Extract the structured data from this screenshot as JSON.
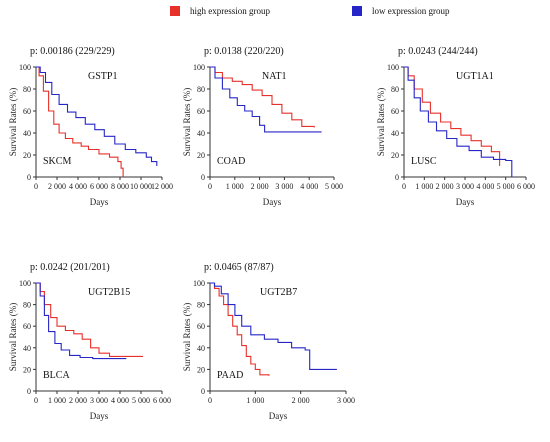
{
  "legend": {
    "items": [
      {
        "label": "high expression group",
        "color": "#e8302a"
      },
      {
        "label": "low expression group",
        "color": "#2626c8"
      }
    ]
  },
  "chart_data": [
    {
      "type": "line",
      "pvalue_text": "p: 0.00186 (229/229)",
      "gene": "GSTP1",
      "cancer": "SKCM",
      "xlabel": "Days",
      "ylabel": "Survival Rates (%)",
      "xlim": [
        0,
        12000
      ],
      "ylim": [
        0,
        100
      ],
      "xticks": [
        0,
        2000,
        4000,
        6000,
        8000,
        10000,
        12000
      ],
      "xtick_labels": [
        "0",
        "2 000",
        "4 000",
        "6 000",
        "8 000",
        "10 000",
        "12 000"
      ],
      "yticks": [
        0,
        20,
        40,
        60,
        80,
        100
      ],
      "series": [
        {
          "name": "high expression group",
          "color": "#e8302a",
          "x": [
            0,
            300,
            700,
            1200,
            1700,
            2200,
            2800,
            3500,
            4300,
            5000,
            6000,
            7000,
            7800,
            8100,
            8300
          ],
          "y": [
            100,
            92,
            78,
            60,
            48,
            40,
            35,
            31,
            28,
            25,
            21,
            18,
            14,
            8,
            0
          ]
        },
        {
          "name": "low expression group",
          "color": "#2626c8",
          "x": [
            0,
            400,
            900,
            1500,
            2200,
            3000,
            3800,
            4700,
            5600,
            6500,
            7500,
            8500,
            9500,
            10500,
            11000,
            11500
          ],
          "y": [
            100,
            95,
            86,
            75,
            66,
            59,
            54,
            48,
            43,
            37,
            30,
            25,
            22,
            18,
            14,
            10
          ]
        }
      ]
    },
    {
      "type": "line",
      "pvalue_text": "p: 0.0138 (220/220)",
      "gene": "NAT1",
      "cancer": "COAD",
      "xlabel": "Days",
      "ylabel": "Survival Rates (%)",
      "xlim": [
        0,
        5000
      ],
      "ylim": [
        0,
        100
      ],
      "xticks": [
        0,
        1000,
        2000,
        3000,
        4000,
        5000
      ],
      "xtick_labels": [
        "0",
        "1 000",
        "2 000",
        "3 000",
        "4 000",
        "5 000"
      ],
      "yticks": [
        0,
        20,
        40,
        60,
        80,
        100
      ],
      "series": [
        {
          "name": "high expression group",
          "color": "#e8302a",
          "x": [
            0,
            200,
            500,
            900,
            1300,
            1700,
            2100,
            2500,
            2900,
            3300,
            3700,
            4200
          ],
          "y": [
            100,
            95,
            90,
            87,
            84,
            79,
            74,
            66,
            58,
            52,
            46,
            45
          ]
        },
        {
          "name": "low expression group",
          "color": "#2626c8",
          "x": [
            0,
            200,
            500,
            800,
            1100,
            1400,
            1700,
            2000,
            2200,
            2800,
            3500,
            4500
          ],
          "y": [
            100,
            90,
            80,
            72,
            65,
            60,
            55,
            47,
            41,
            41,
            41,
            41
          ]
        }
      ]
    },
    {
      "type": "line",
      "pvalue_text": "p: 0.0243 (244/244)",
      "gene": "UGT1A1",
      "cancer": "LUSC",
      "xlabel": "Days",
      "ylabel": "Survival Rates (%)",
      "xlim": [
        0,
        6000
      ],
      "ylim": [
        0,
        100
      ],
      "xticks": [
        0,
        1000,
        2000,
        3000,
        4000,
        5000,
        6000
      ],
      "xtick_labels": [
        "0",
        "1 000",
        "2 000",
        "3 000",
        "4 000",
        "5 000",
        "6 000"
      ],
      "yticks": [
        0,
        20,
        40,
        60,
        80,
        100
      ],
      "series": [
        {
          "name": "high expression group",
          "color": "#e8302a",
          "x": [
            0,
            200,
            500,
            900,
            1300,
            1800,
            2300,
            2800,
            3300,
            3800,
            4300,
            4700
          ],
          "y": [
            100,
            92,
            80,
            68,
            58,
            50,
            44,
            38,
            33,
            28,
            23,
            10
          ]
        },
        {
          "name": "low expression group",
          "color": "#2626c8",
          "x": [
            0,
            200,
            500,
            800,
            1200,
            1600,
            2100,
            2600,
            3200,
            3800,
            4400,
            5000,
            5300
          ],
          "y": [
            100,
            88,
            72,
            60,
            50,
            42,
            35,
            28,
            24,
            18,
            16,
            15,
            0
          ]
        }
      ]
    },
    {
      "type": "line",
      "pvalue_text": "p: 0.0242 (201/201)",
      "gene": "UGT2B15",
      "cancer": "BLCA",
      "xlabel": "Days",
      "ylabel": "Survival Rates (%)",
      "xlim": [
        0,
        6000
      ],
      "ylim": [
        0,
        100
      ],
      "xticks": [
        0,
        1000,
        2000,
        3000,
        4000,
        5000,
        6000
      ],
      "xtick_labels": [
        "0",
        "1 000",
        "2 000",
        "3 000",
        "4 000",
        "5 000",
        "6 000"
      ],
      "yticks": [
        0,
        20,
        40,
        60,
        80,
        100
      ],
      "series": [
        {
          "name": "high expression group",
          "color": "#e8302a",
          "x": [
            0,
            200,
            400,
            700,
            1000,
            1400,
            1800,
            2200,
            2600,
            3000,
            3500,
            4200,
            5100
          ],
          "y": [
            100,
            92,
            80,
            68,
            60,
            56,
            53,
            48,
            40,
            35,
            32,
            32,
            32
          ]
        },
        {
          "name": "low expression group",
          "color": "#2626c8",
          "x": [
            0,
            200,
            400,
            600,
            900,
            1200,
            1600,
            2100,
            2700,
            3400,
            4300
          ],
          "y": [
            100,
            88,
            70,
            55,
            44,
            38,
            33,
            31,
            30,
            30,
            30
          ]
        }
      ]
    },
    {
      "type": "line",
      "pvalue_text": "p: 0.0465 (87/87)",
      "gene": "UGT2B7",
      "cancer": "PAAD",
      "xlabel": "Days",
      "ylabel": "Survival Rates (%)",
      "xlim": [
        0,
        3000
      ],
      "ylim": [
        0,
        100
      ],
      "xticks": [
        0,
        1000,
        2000,
        3000
      ],
      "xtick_labels": [
        "0",
        "1 000",
        "2 000",
        "3 000"
      ],
      "yticks": [
        0,
        20,
        40,
        60,
        80,
        100
      ],
      "series": [
        {
          "name": "high expression group",
          "color": "#e8302a",
          "x": [
            0,
            100,
            200,
            300,
            400,
            500,
            600,
            700,
            800,
            900,
            1000,
            1100,
            1300
          ],
          "y": [
            100,
            95,
            88,
            80,
            70,
            60,
            52,
            42,
            32,
            25,
            20,
            15,
            14
          ]
        },
        {
          "name": "low expression group",
          "color": "#2626c8",
          "x": [
            0,
            100,
            250,
            400,
            550,
            700,
            900,
            1200,
            1500,
            1800,
            2100,
            2200,
            2800
          ],
          "y": [
            100,
            97,
            90,
            80,
            70,
            60,
            52,
            48,
            45,
            40,
            38,
            20,
            20
          ]
        }
      ]
    }
  ]
}
